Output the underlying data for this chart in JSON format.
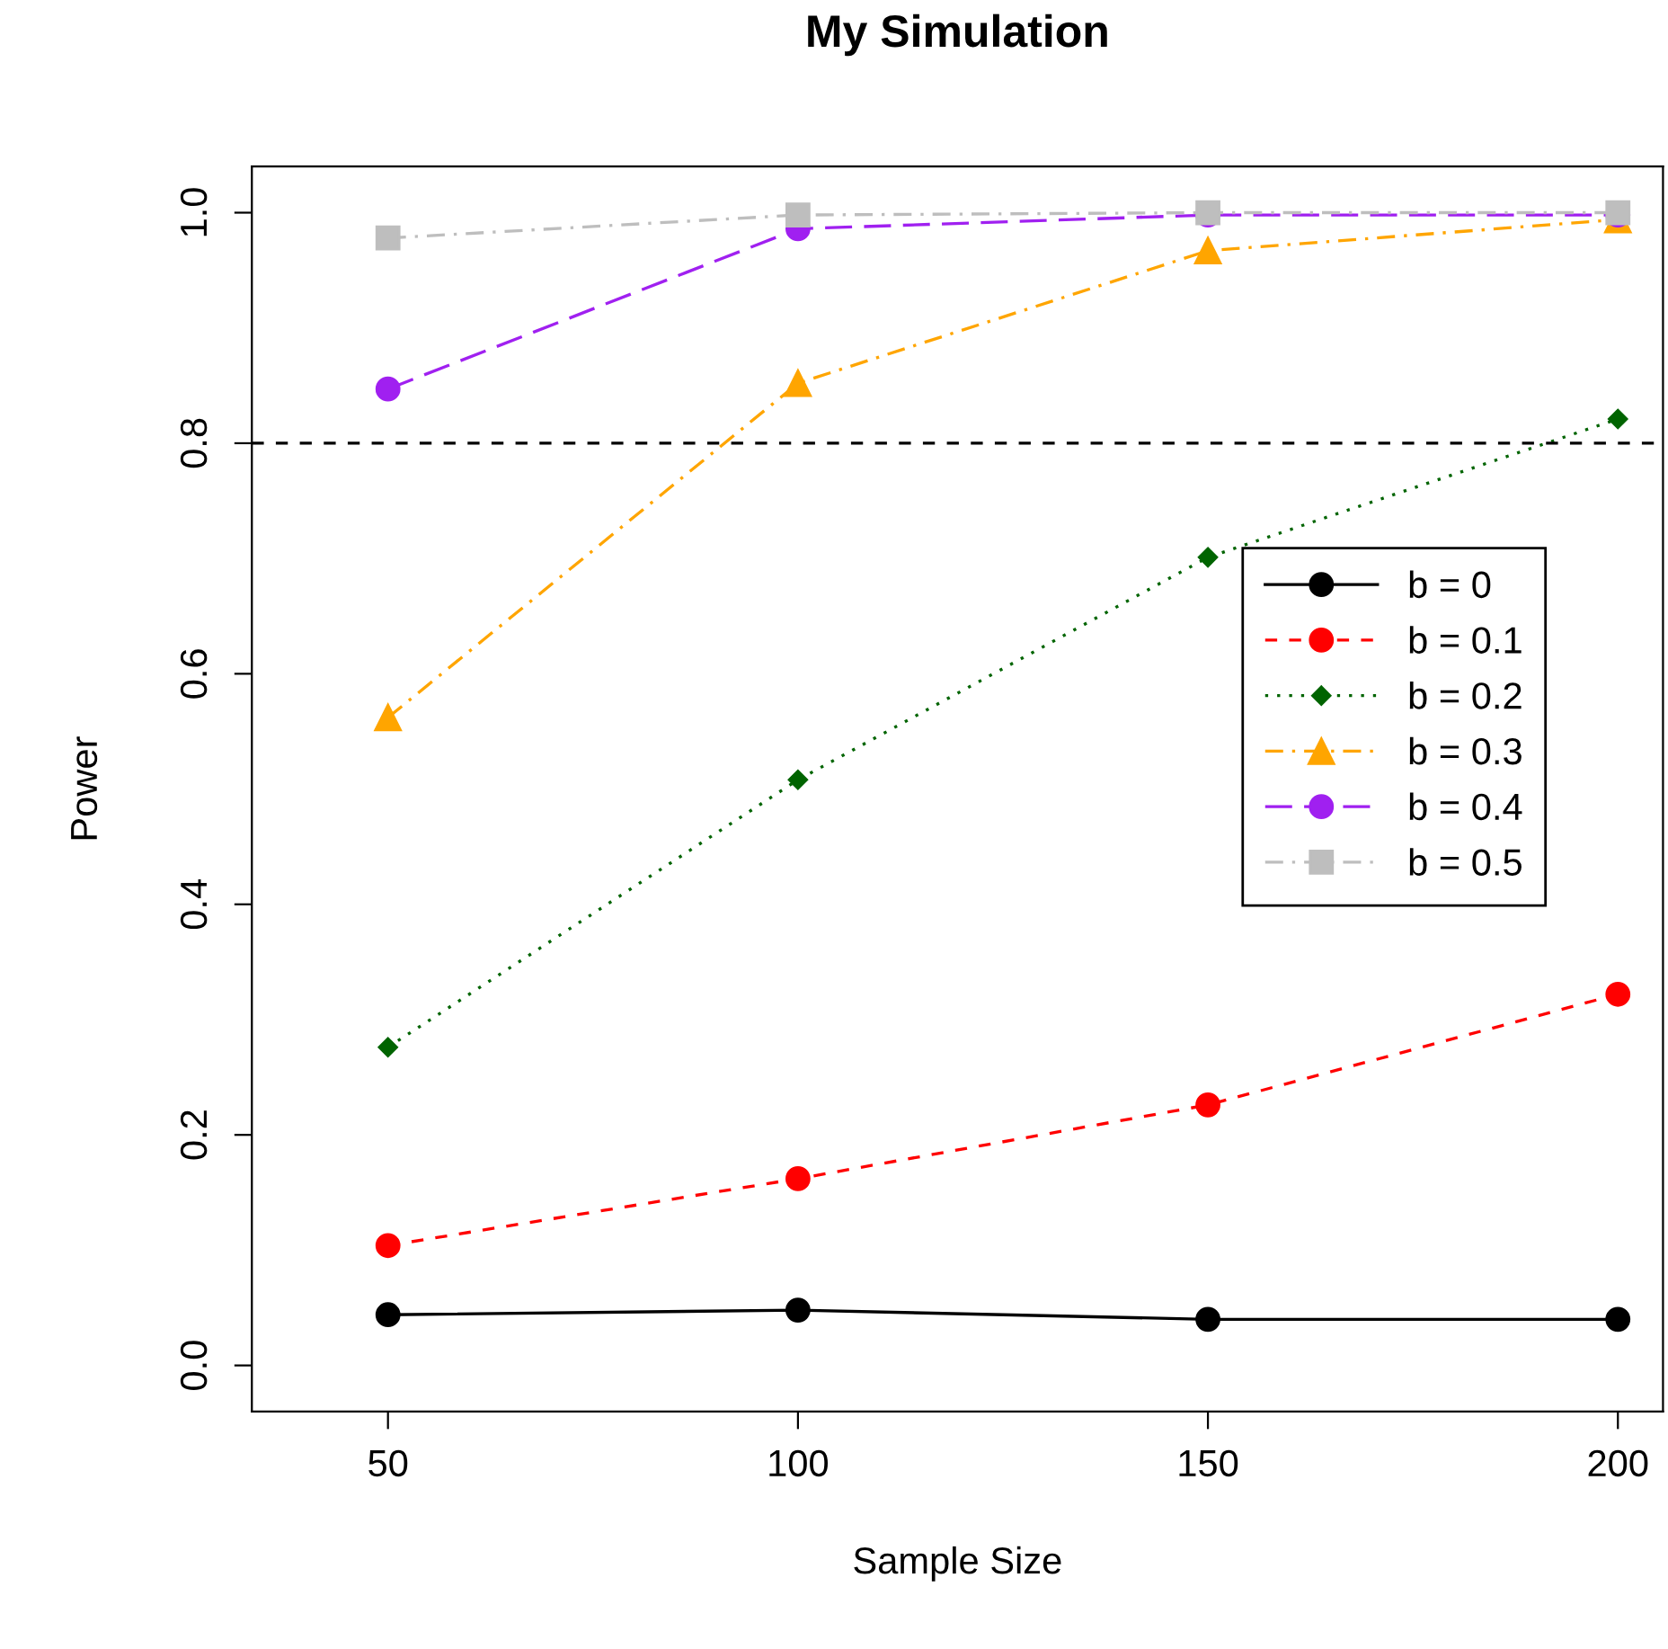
{
  "chart_data": {
    "type": "line",
    "title": "My Simulation",
    "xlabel": "Sample Size",
    "ylabel": "Power",
    "x": [
      50,
      100,
      150,
      200
    ],
    "series": [
      {
        "name": "b = 0",
        "color": "#000000",
        "marker": "circle",
        "line_style": "solid",
        "values": [
          0.044,
          0.048,
          0.04,
          0.04
        ]
      },
      {
        "name": "b = 0.1",
        "color": "#ff0000",
        "marker": "circle",
        "line_style": "dashed",
        "values": [
          0.104,
          0.162,
          0.226,
          0.322
        ]
      },
      {
        "name": "b = 0.2",
        "color": "#006400",
        "marker": "diamond",
        "line_style": "dotted",
        "values": [
          0.276,
          0.508,
          0.701,
          0.821
        ]
      },
      {
        "name": "b = 0.3",
        "color": "#ffa500",
        "marker": "triangle",
        "line_style": "dashdot",
        "values": [
          0.562,
          0.852,
          0.967,
          0.994
        ]
      },
      {
        "name": "b = 0.4",
        "color": "#a020f0",
        "marker": "circle",
        "line_style": "longdash",
        "values": [
          0.847,
          0.986,
          0.998,
          0.998
        ]
      },
      {
        "name": "b = 0.5",
        "color": "#bebebe",
        "marker": "square",
        "line_style": "dashdot",
        "values": [
          0.978,
          0.998,
          1.0,
          1.0
        ]
      }
    ],
    "xlim": [
      33.4,
      205.5
    ],
    "xticks": [
      50,
      100,
      150,
      200
    ],
    "ylim": [
      -0.04,
      1.04
    ],
    "yticks": [
      {
        "value": 0,
        "label": "0.0"
      },
      0.2,
      0.4,
      0.6,
      0.8,
      {
        "value": 1,
        "label": "1.0"
      }
    ],
    "ref_lines": [
      {
        "axis": "y",
        "value": 0.8,
        "color": "#000000",
        "line_style": "dashed"
      }
    ],
    "grid": false,
    "legend": "right"
  }
}
